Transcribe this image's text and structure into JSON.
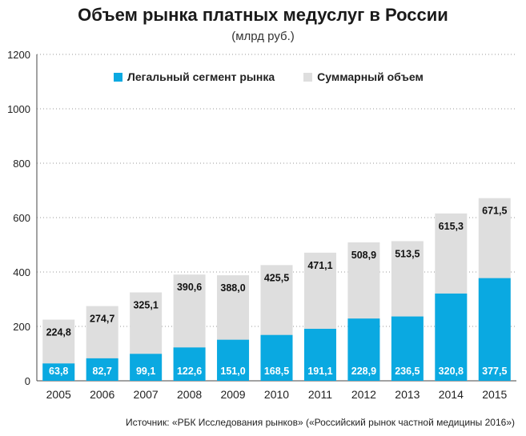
{
  "chart_data": {
    "type": "bar",
    "title": "Объем рынка платных медуслуг в России",
    "subtitle": "(млрд руб.)",
    "categories": [
      "2005",
      "2006",
      "2007",
      "2008",
      "2009",
      "2010",
      "2011",
      "2012",
      "2013",
      "2014",
      "2015"
    ],
    "series": [
      {
        "name": "Легальный сегмент рынка",
        "color": "#0aa9e1",
        "values": [
          63.8,
          82.7,
          99.1,
          122.6,
          151.0,
          168.5,
          191.1,
          228.9,
          236.5,
          320.8,
          377.5
        ],
        "labels": [
          "63,8",
          "82,7",
          "99,1",
          "122,6",
          "151,0",
          "168,5",
          "191,1",
          "228,9",
          "236,5",
          "320,8",
          "377,5"
        ]
      },
      {
        "name": "Суммарный объем",
        "color": "#dedede",
        "values": [
          224.8,
          274.7,
          325.1,
          390.6,
          388.0,
          425.5,
          471.1,
          508.9,
          513.5,
          615.3,
          671.5
        ],
        "labels": [
          "224,8",
          "274,7",
          "325,1",
          "390,6",
          "388,0",
          "425,5",
          "471,1",
          "508,9",
          "513,5",
          "615,3",
          "671,5"
        ]
      }
    ],
    "stacked": true,
    "xlabel": "",
    "ylabel": "",
    "ylim": [
      0,
      1200
    ],
    "yticks": [
      0,
      200,
      400,
      600,
      800,
      1000,
      1200
    ],
    "grid": true,
    "legend_position": "top"
  },
  "source": "Источник: «РБК Исследования рынков» («Российский рынок частной медицины 2016»)"
}
